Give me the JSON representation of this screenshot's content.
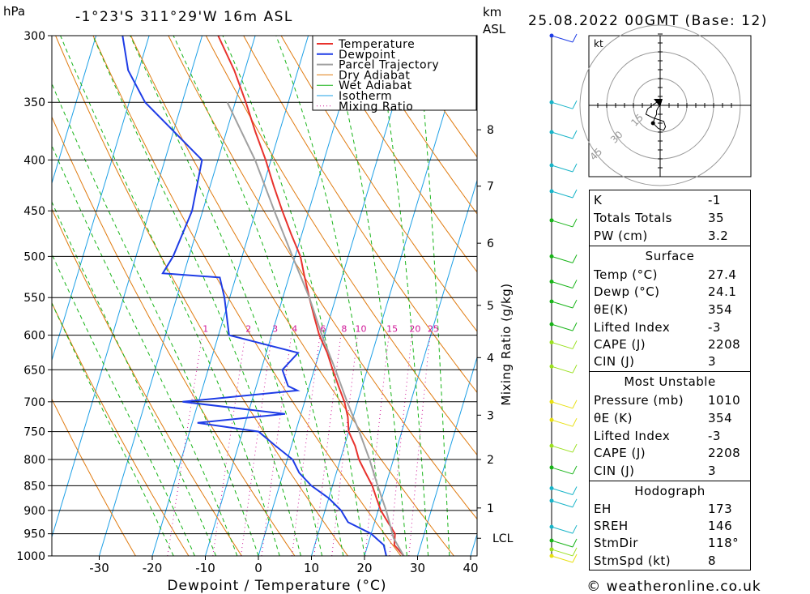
{
  "header": {
    "pressure_unit": "hPa",
    "location": "-1°23'S  311°29'W  16m  ASL",
    "height_unit_1": "km",
    "height_unit_2": "ASL",
    "datetime": "25.08.2022  00GMT  (Base: 12)"
  },
  "footer": {
    "copyright": "© weatheronline.co.uk"
  },
  "chart_data": [
    {
      "type": "line",
      "subtype": "skew-T log-p sounding",
      "xlabel": "Dewpoint / Temperature (°C)",
      "y2label": "Mixing Ratio (g/kg)",
      "x_ticks": [
        -30,
        -20,
        -10,
        0,
        10,
        20,
        30,
        40
      ],
      "xlim": [
        -40,
        40
      ],
      "pressure_levels": [
        300,
        350,
        400,
        450,
        500,
        550,
        600,
        650,
        700,
        750,
        800,
        850,
        900,
        950,
        1000
      ],
      "ylim": [
        1000,
        300
      ],
      "km_ticks": [
        {
          "label": "8",
          "p": 373
        },
        {
          "label": "7",
          "p": 425
        },
        {
          "label": "6",
          "p": 485
        },
        {
          "label": "5",
          "p": 560
        },
        {
          "label": "4",
          "p": 632
        },
        {
          "label": "3",
          "p": 722
        },
        {
          "label": "2",
          "p": 800
        },
        {
          "label": "1",
          "p": 895
        },
        {
          "label": "LCL",
          "p": 960
        }
      ],
      "mixing_ratio_labels": [
        "1",
        "2",
        "3",
        "4",
        "6",
        "8",
        "10",
        "15",
        "20",
        "25"
      ],
      "legend": [
        "Temperature",
        "Dewpoint",
        "Parcel Trajectory",
        "Dry Adiabat",
        "Wet Adiabat",
        "Isotherm",
        "Mixing Ratio"
      ],
      "legend_position": "top-right",
      "colors": {
        "temperature": "#e8322d",
        "dewpoint": "#1e3ce6",
        "parcel": "#a0a0a0",
        "dry_adiabat": "#e07b10",
        "wet_adiabat": "#18b418",
        "isotherm": "#1ea0e6",
        "mixing_ratio": "#d01898"
      },
      "series": [
        {
          "name": "Temperature",
          "points": [
            [
              1000,
              27.4
            ],
            [
              975,
              25.0
            ],
            [
              950,
              24.5
            ],
            [
              925,
              22.5
            ],
            [
              900,
              20.5
            ],
            [
              875,
              19.0
            ],
            [
              850,
              17.5
            ],
            [
              825,
              15.5
            ],
            [
              800,
              13.5
            ],
            [
              775,
              12.0
            ],
            [
              750,
              10.0
            ],
            [
              725,
              9.0
            ],
            [
              700,
              7.5
            ],
            [
              675,
              5.5
            ],
            [
              650,
              3.5
            ],
            [
              625,
              1.5
            ],
            [
              600,
              -1.0
            ],
            [
              575,
              -3.0
            ],
            [
              550,
              -5.0
            ],
            [
              525,
              -7.0
            ],
            [
              500,
              -9.0
            ],
            [
              475,
              -12.0
            ],
            [
              450,
              -15.0
            ],
            [
              425,
              -18.0
            ],
            [
              400,
              -21.0
            ],
            [
              375,
              -24.5
            ],
            [
              350,
              -28.0
            ],
            [
              325,
              -32.0
            ],
            [
              300,
              -37.0
            ]
          ]
        },
        {
          "name": "Dewpoint",
          "points": [
            [
              1000,
              24.1
            ],
            [
              975,
              23.0
            ],
            [
              950,
              20.0
            ],
            [
              925,
              15.0
            ],
            [
              900,
              13.0
            ],
            [
              875,
              10.0
            ],
            [
              850,
              6.0
            ],
            [
              825,
              3.0
            ],
            [
              800,
              1.0
            ],
            [
              775,
              -3.0
            ],
            [
              750,
              -7.0
            ],
            [
              735,
              -19.0
            ],
            [
              720,
              -3.0
            ],
            [
              700,
              -23.0
            ],
            [
              682,
              -2.0
            ],
            [
              675,
              -4.0
            ],
            [
              650,
              -6.0
            ],
            [
              625,
              -4.0
            ],
            [
              600,
              -18.0
            ],
            [
              550,
              -21.0
            ],
            [
              525,
              -23.0
            ],
            [
              520,
              -34.0
            ],
            [
              500,
              -33.0
            ],
            [
              450,
              -32.0
            ],
            [
              400,
              -33.0
            ],
            [
              350,
              -47.0
            ],
            [
              325,
              -52.0
            ],
            [
              300,
              -55.0
            ]
          ]
        },
        {
          "name": "Parcel Trajectory",
          "points": [
            [
              1000,
              27.4
            ],
            [
              960,
              24.5
            ],
            [
              900,
              21.5
            ],
            [
              850,
              18.5
            ],
            [
              800,
              15.5
            ],
            [
              750,
              12.0
            ],
            [
              700,
              8.0
            ],
            [
              650,
              4.0
            ],
            [
              600,
              -0.5
            ],
            [
              550,
              -5.0
            ],
            [
              500,
              -10.5
            ],
            [
              450,
              -16.5
            ],
            [
              400,
              -23.0
            ],
            [
              350,
              -31.5
            ]
          ]
        }
      ]
    },
    {
      "type": "scatter",
      "subtype": "hodograph",
      "unit_label": "kt",
      "ring_labels": [
        "15",
        "30",
        "45"
      ],
      "points": [
        [
          0,
          0
        ],
        [
          -1,
          -1
        ],
        [
          -2,
          -3
        ],
        [
          -2,
          -5
        ],
        [
          -3,
          -7
        ],
        [
          -4,
          -10
        ],
        [
          -1,
          -13
        ],
        [
          2,
          -14
        ],
        [
          3,
          -12
        ],
        [
          2,
          -9
        ],
        [
          -4,
          -7
        ],
        [
          -8,
          -5
        ],
        [
          -7,
          -2
        ],
        [
          -3,
          1
        ],
        [
          0,
          3
        ]
      ]
    }
  ],
  "wind_profile": {
    "levels": [
      {
        "p": 300,
        "color": "#1e3ce6"
      },
      {
        "p": 350,
        "color": "#18b4c8"
      },
      {
        "p": 375,
        "color": "#18b4c8"
      },
      {
        "p": 405,
        "color": "#18b4c8"
      },
      {
        "p": 430,
        "color": "#18b4c8"
      },
      {
        "p": 460,
        "color": "#18b418"
      },
      {
        "p": 500,
        "color": "#18b418"
      },
      {
        "p": 530,
        "color": "#18b418"
      },
      {
        "p": 555,
        "color": "#18b418"
      },
      {
        "p": 585,
        "color": "#18b418"
      },
      {
        "p": 610,
        "color": "#9ae01e"
      },
      {
        "p": 645,
        "color": "#9ae01e"
      },
      {
        "p": 700,
        "color": "#e8e010"
      },
      {
        "p": 730,
        "color": "#e8e010"
      },
      {
        "p": 775,
        "color": "#9ae01e"
      },
      {
        "p": 815,
        "color": "#18b418"
      },
      {
        "p": 855,
        "color": "#18b4c8"
      },
      {
        "p": 880,
        "color": "#18b4c8"
      },
      {
        "p": 935,
        "color": "#18b4c8"
      },
      {
        "p": 965,
        "color": "#18b418"
      },
      {
        "p": 985,
        "color": "#9ae01e"
      },
      {
        "p": 1000,
        "color": "#e8e010"
      }
    ]
  },
  "indices": {
    "k_label": "K",
    "k_value": "-1",
    "tt_label": "Totals Totals",
    "tt_value": "35",
    "pw_label": "PW (cm)",
    "pw_value": "3.2"
  },
  "surface": {
    "title": "Surface",
    "temp_label": "Temp (°C)",
    "temp_value": "27.4",
    "dewp_label": "Dewp (°C)",
    "dewp_value": "24.1",
    "theta_label": "θE(K)",
    "theta_value": "354",
    "li_label": "Lifted Index",
    "li_value": "-3",
    "cape_label": "CAPE (J)",
    "cape_value": "2208",
    "cin_label": "CIN (J)",
    "cin_value": "3"
  },
  "most_unstable": {
    "title": "Most Unstable",
    "pressure_label": "Pressure (mb)",
    "pressure_value": "1010",
    "theta_label": "θE (K)",
    "theta_value": "354",
    "li_label": "Lifted Index",
    "li_value": "-3",
    "cape_label": "CAPE (J)",
    "cape_value": "2208",
    "cin_label": "CIN (J)",
    "cin_value": "3"
  },
  "hodograph_stats": {
    "title": "Hodograph",
    "eh_label": "EH",
    "eh_value": "173",
    "sreh_label": "SREH",
    "sreh_value": "146",
    "stmdir_label": "StmDir",
    "stmdir_value": "118°",
    "stmspd_label": "StmSpd (kt)",
    "stmspd_value": "8"
  }
}
